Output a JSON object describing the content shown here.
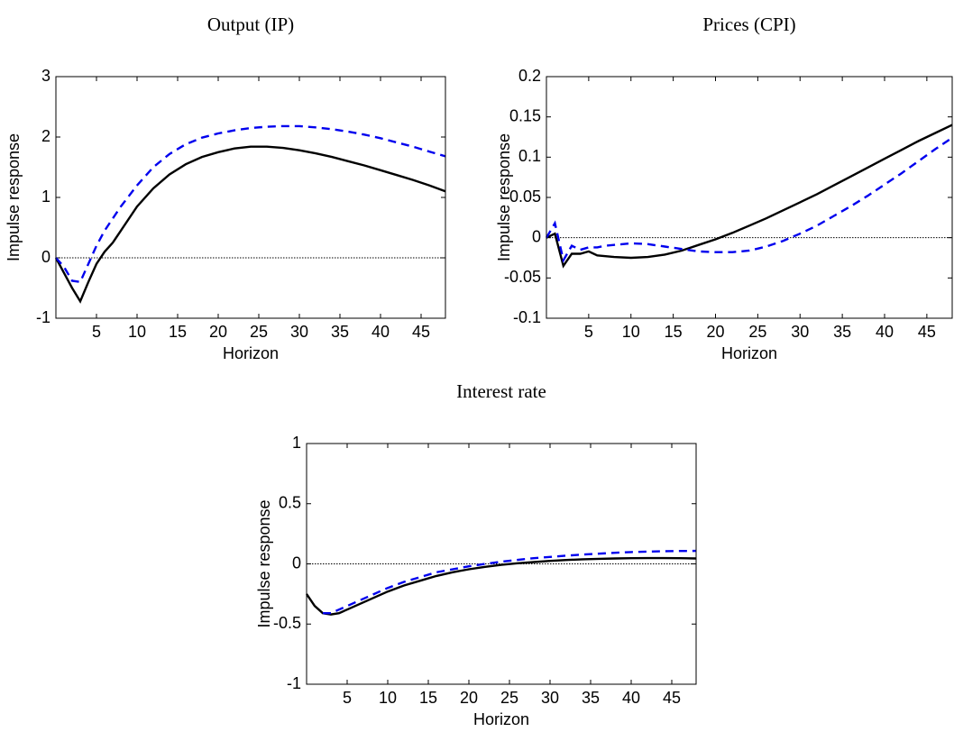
{
  "chart_data": [
    {
      "type": "line",
      "title": "Output (IP)",
      "xlabel": "Horizon",
      "ylabel": "Impulse response",
      "x": [
        0,
        1,
        2,
        3,
        4,
        5,
        6,
        7,
        8,
        10,
        12,
        14,
        16,
        18,
        20,
        22,
        24,
        26,
        28,
        30,
        32,
        34,
        36,
        38,
        40,
        42,
        44,
        46,
        48
      ],
      "series": [
        {
          "color": "#000000",
          "linestyle": "solid",
          "values": [
            0,
            -0.25,
            -0.5,
            -0.72,
            -0.4,
            -0.1,
            0.1,
            0.25,
            0.45,
            0.85,
            1.15,
            1.38,
            1.55,
            1.67,
            1.75,
            1.81,
            1.84,
            1.84,
            1.82,
            1.78,
            1.73,
            1.67,
            1.6,
            1.53,
            1.45,
            1.37,
            1.29,
            1.2,
            1.1
          ]
        },
        {
          "color": "#0000ee",
          "linestyle": "dashed",
          "values": [
            0,
            -0.15,
            -0.38,
            -0.4,
            -0.1,
            0.2,
            0.45,
            0.65,
            0.85,
            1.2,
            1.5,
            1.72,
            1.88,
            1.99,
            2.06,
            2.11,
            2.15,
            2.17,
            2.18,
            2.18,
            2.16,
            2.13,
            2.09,
            2.04,
            1.98,
            1.91,
            1.84,
            1.76,
            1.68
          ]
        }
      ],
      "xlim": [
        0,
        48
      ],
      "ylim": [
        -1,
        3
      ],
      "xticks": [
        5,
        10,
        15,
        20,
        25,
        30,
        35,
        40,
        45
      ],
      "yticks": [
        -1,
        0,
        1,
        2,
        3
      ]
    },
    {
      "type": "line",
      "title": "Prices (CPI)",
      "xlabel": "Horizon",
      "ylabel": "Impulse response",
      "x": [
        0,
        1,
        2,
        3,
        4,
        5,
        6,
        7,
        8,
        10,
        12,
        14,
        16,
        18,
        20,
        22,
        24,
        26,
        28,
        30,
        32,
        34,
        36,
        38,
        40,
        42,
        44,
        46,
        48
      ],
      "series": [
        {
          "color": "#000000",
          "linestyle": "solid",
          "values": [
            0,
            0.005,
            -0.035,
            -0.02,
            -0.02,
            -0.017,
            -0.022,
            -0.023,
            -0.024,
            -0.025,
            -0.024,
            -0.021,
            -0.016,
            -0.009,
            -0.002,
            0.006,
            0.015,
            0.024,
            0.034,
            0.044,
            0.054,
            0.065,
            0.076,
            0.087,
            0.098,
            0.109,
            0.12,
            0.13,
            0.14
          ]
        },
        {
          "color": "#0000ee",
          "linestyle": "dashed",
          "values": [
            0,
            0.018,
            -0.028,
            -0.01,
            -0.015,
            -0.012,
            -0.012,
            -0.01,
            -0.009,
            -0.007,
            -0.008,
            -0.011,
            -0.014,
            -0.017,
            -0.018,
            -0.018,
            -0.016,
            -0.011,
            -0.004,
            0.005,
            0.015,
            0.027,
            0.039,
            0.052,
            0.066,
            0.08,
            0.095,
            0.11,
            0.124
          ]
        }
      ],
      "xlim": [
        0,
        48
      ],
      "ylim": [
        -0.1,
        0.2
      ],
      "xticks": [
        5,
        10,
        15,
        20,
        25,
        30,
        35,
        40,
        45
      ],
      "yticks": [
        -0.1,
        -0.05,
        0,
        0.05,
        0.1,
        0.15,
        0.2
      ]
    },
    {
      "type": "line",
      "title": "Interest rate",
      "xlabel": "Horizon",
      "ylabel": "Impulse response",
      "x": [
        0,
        1,
        2,
        3,
        4,
        5,
        6,
        7,
        8,
        10,
        12,
        14,
        16,
        18,
        20,
        22,
        24,
        26,
        28,
        30,
        32,
        34,
        36,
        38,
        40,
        42,
        44,
        46,
        48
      ],
      "series": [
        {
          "color": "#000000",
          "linestyle": "solid",
          "values": [
            -0.25,
            -0.35,
            -0.41,
            -0.42,
            -0.41,
            -0.38,
            -0.35,
            -0.32,
            -0.29,
            -0.23,
            -0.18,
            -0.14,
            -0.1,
            -0.07,
            -0.045,
            -0.025,
            -0.008,
            0.005,
            0.015,
            0.025,
            0.032,
            0.038,
            0.042,
            0.045,
            0.047,
            0.048,
            0.048,
            0.047,
            0.045
          ]
        },
        {
          "color": "#0000ee",
          "linestyle": "dashed",
          "values": [
            null,
            null,
            -0.41,
            -0.41,
            -0.38,
            -0.35,
            -0.32,
            -0.29,
            -0.26,
            -0.2,
            -0.15,
            -0.11,
            -0.07,
            -0.045,
            -0.02,
            0.0,
            0.018,
            0.033,
            0.047,
            0.058,
            0.068,
            0.077,
            0.085,
            0.092,
            0.098,
            0.102,
            0.105,
            0.107,
            0.108
          ]
        }
      ],
      "xlim": [
        0,
        48
      ],
      "ylim": [
        -1,
        1
      ],
      "xticks": [
        5,
        10,
        15,
        20,
        25,
        30,
        35,
        40,
        45
      ],
      "yticks": [
        -1,
        -0.5,
        0,
        0.5,
        1
      ]
    }
  ]
}
